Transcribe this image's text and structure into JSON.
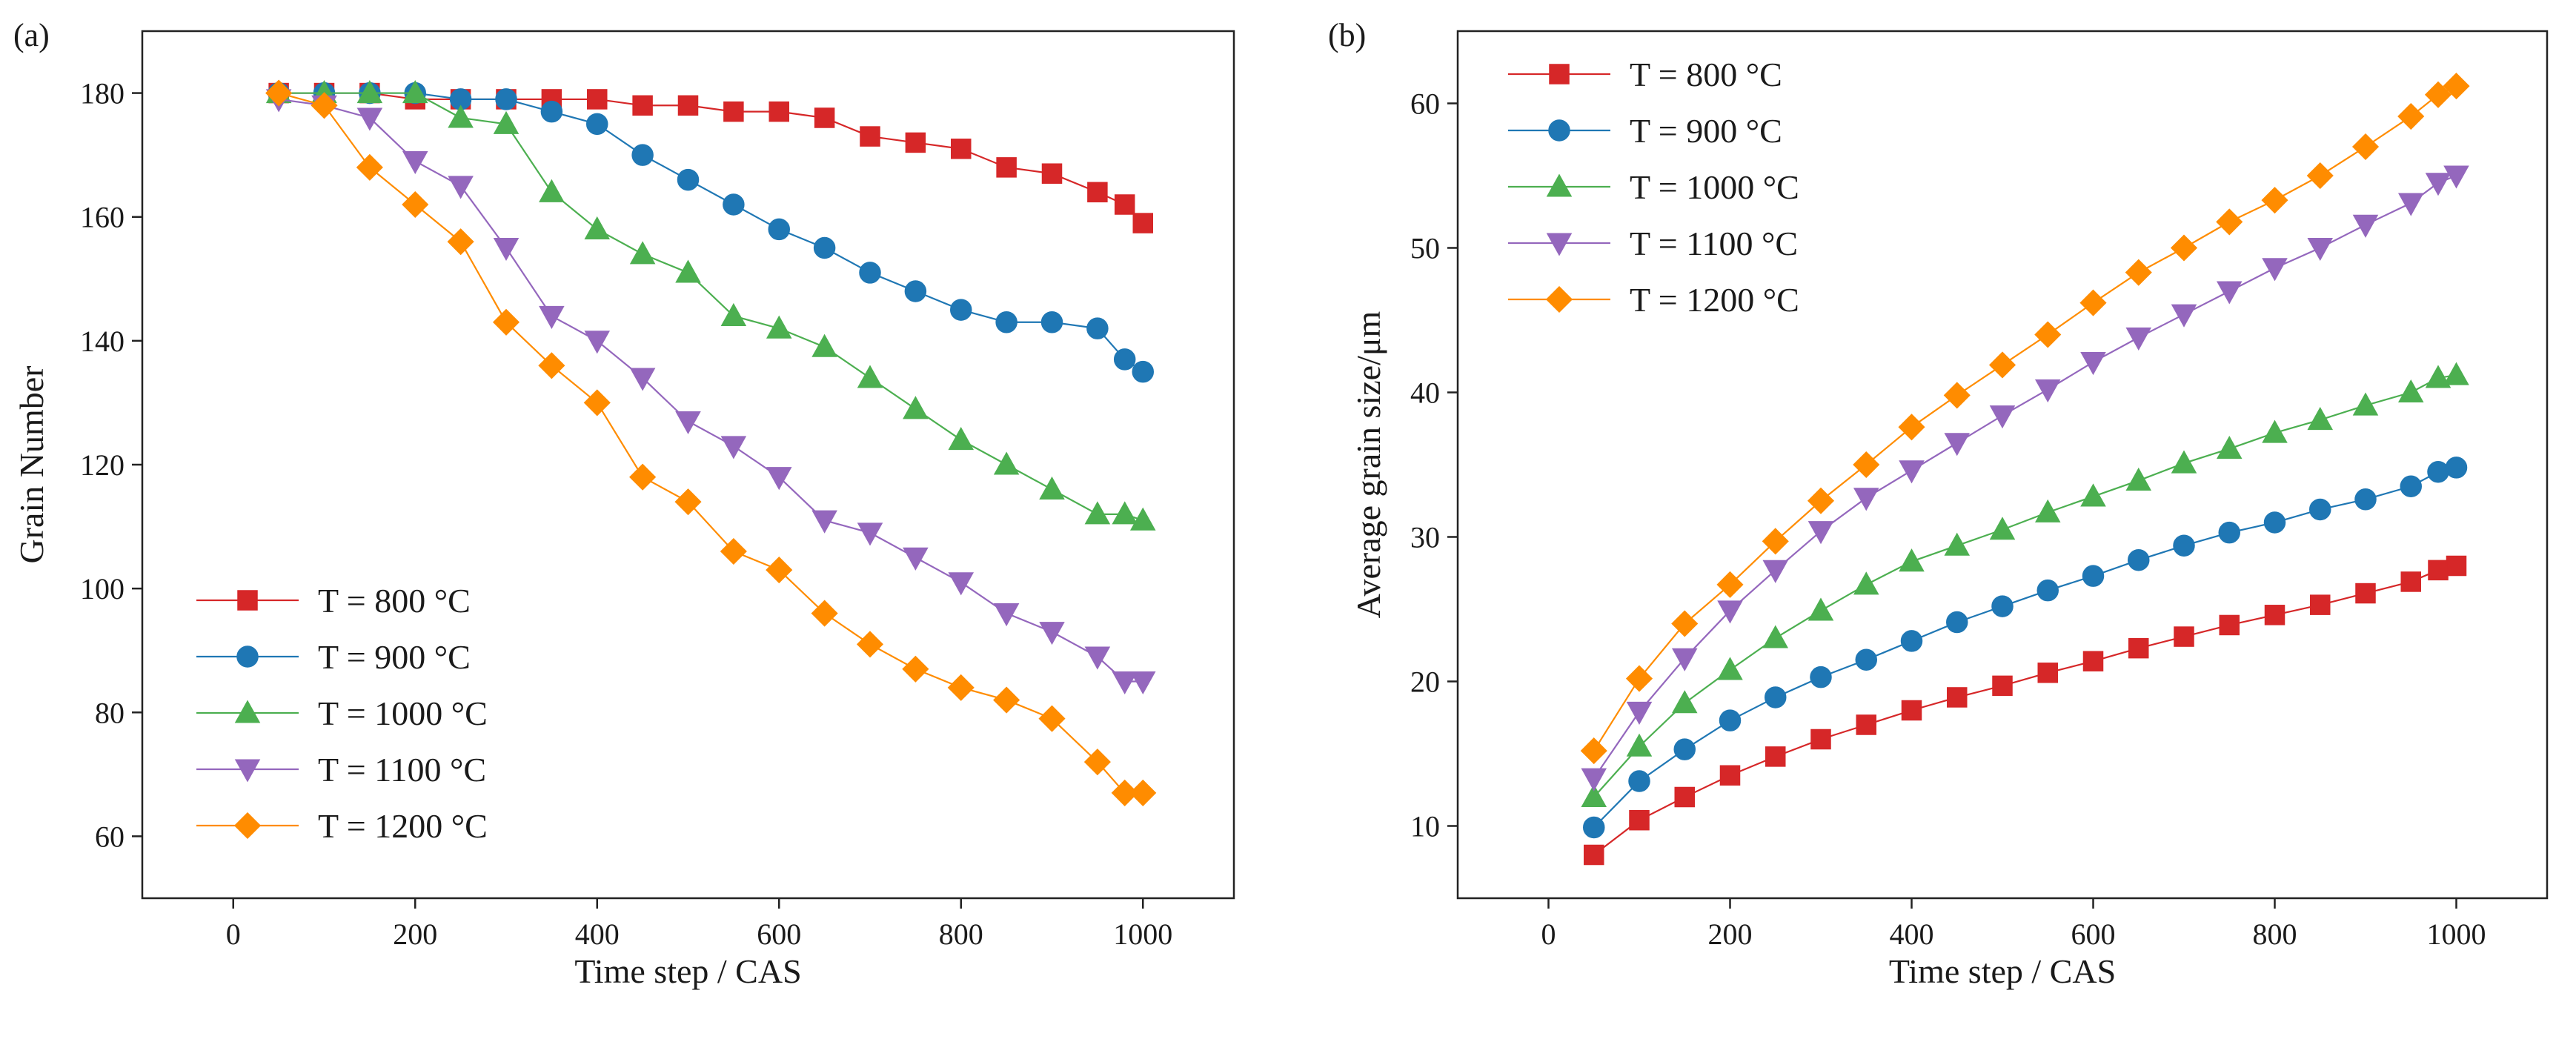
{
  "figure_labels": [
    "(a)",
    "(b)"
  ],
  "chart_data": [
    {
      "type": "line",
      "panel_label": "(a)",
      "title": "",
      "xlabel": "Time step / CAS",
      "ylabel": "Grain Number",
      "xlim": [
        -100,
        1100
      ],
      "ylim": [
        50,
        190
      ],
      "xticks": [
        0,
        200,
        400,
        600,
        800,
        1000
      ],
      "yticks": [
        60,
        80,
        100,
        120,
        140,
        160,
        180
      ],
      "xtick_labels": [
        "0",
        "200",
        "400",
        "600",
        "800",
        "1000"
      ],
      "ytick_labels": [
        "60",
        "80",
        "100",
        "120",
        "140",
        "160",
        "180"
      ],
      "legend_position": "bottom-left",
      "x": [
        50,
        100,
        150,
        200,
        250,
        300,
        350,
        400,
        450,
        500,
        550,
        600,
        650,
        700,
        750,
        800,
        850,
        900,
        950,
        980,
        1000
      ],
      "series": [
        {
          "name": "T = 800 °C",
          "color": "#d62728",
          "marker": "square",
          "values": [
            180,
            180,
            180,
            179,
            179,
            179,
            179,
            179,
            178,
            178,
            177,
            177,
            176,
            173,
            172,
            171,
            168,
            167,
            164,
            162,
            159
          ]
        },
        {
          "name": "T = 900 °C",
          "color": "#1f77b4",
          "marker": "circle",
          "values": [
            180,
            180,
            180,
            180,
            179,
            179,
            177,
            175,
            170,
            166,
            162,
            158,
            155,
            151,
            148,
            145,
            143,
            143,
            142,
            137,
            135
          ]
        },
        {
          "name": "T = 1000 °C",
          "color": "#4caf50",
          "marker": "triangle-up",
          "values": [
            180,
            180,
            180,
            180,
            176,
            175,
            164,
            158,
            154,
            151,
            144,
            142,
            139,
            134,
            129,
            124,
            120,
            116,
            112,
            112,
            111
          ]
        },
        {
          "name": "T = 1100 °C",
          "color": "#9467bd",
          "marker": "triangle-down",
          "values": [
            179,
            178,
            176,
            169,
            165,
            155,
            144,
            140,
            134,
            127,
            123,
            118,
            111,
            109,
            105,
            101,
            96,
            93,
            89,
            85,
            85
          ]
        },
        {
          "name": "T = 1200 °C",
          "color": "#ff8c00",
          "marker": "diamond",
          "values": [
            180,
            178,
            168,
            162,
            156,
            143,
            136,
            130,
            118,
            114,
            106,
            103,
            96,
            91,
            87,
            84,
            82,
            79,
            72,
            67,
            67
          ]
        }
      ]
    },
    {
      "type": "line",
      "panel_label": "(b)",
      "title": "",
      "xlabel": "Time step / CAS",
      "ylabel": "Average grain size/μm",
      "xlim": [
        -100,
        1100
      ],
      "ylim": [
        5,
        65
      ],
      "xticks": [
        0,
        200,
        400,
        600,
        800,
        1000
      ],
      "yticks": [
        10,
        20,
        30,
        40,
        50,
        60
      ],
      "xtick_labels": [
        "0",
        "200",
        "400",
        "600",
        "800",
        "1000"
      ],
      "ytick_labels": [
        "10",
        "20",
        "30",
        "40",
        "50",
        "60"
      ],
      "legend_position": "top-left",
      "x": [
        50,
        100,
        150,
        200,
        250,
        300,
        350,
        400,
        450,
        500,
        550,
        600,
        650,
        700,
        750,
        800,
        850,
        900,
        950,
        980,
        1000
      ],
      "series": [
        {
          "name": "T = 800 °C",
          "color": "#d62728",
          "marker": "square",
          "values": [
            8.0,
            10.4,
            12.0,
            13.5,
            14.8,
            16.0,
            17.0,
            18.0,
            18.9,
            19.7,
            20.6,
            21.4,
            22.3,
            23.1,
            23.9,
            24.6,
            25.3,
            26.1,
            26.9,
            27.7,
            28.0
          ]
        },
        {
          "name": "T = 900 °C",
          "color": "#1f77b4",
          "marker": "circle",
          "values": [
            9.9,
            13.1,
            15.3,
            17.3,
            18.9,
            20.3,
            21.5,
            22.8,
            24.1,
            25.2,
            26.3,
            27.3,
            28.4,
            29.4,
            30.3,
            31.0,
            31.9,
            32.6,
            33.5,
            34.5,
            34.8
          ]
        },
        {
          "name": "T = 1000 °C",
          "color": "#4caf50",
          "marker": "triangle-up",
          "values": [
            12.0,
            15.5,
            18.5,
            20.8,
            23.0,
            24.9,
            26.7,
            28.3,
            29.4,
            30.5,
            31.7,
            32.8,
            33.9,
            35.1,
            36.1,
            37.2,
            38.1,
            39.1,
            40.0,
            41.0,
            41.2
          ]
        },
        {
          "name": "T = 1100 °C",
          "color": "#9467bd",
          "marker": "triangle-down",
          "values": [
            13.3,
            17.9,
            21.6,
            24.9,
            27.7,
            30.4,
            32.7,
            34.6,
            36.5,
            38.4,
            40.2,
            42.1,
            43.8,
            45.4,
            47.0,
            48.6,
            50.0,
            51.6,
            53.1,
            54.5,
            55.0
          ]
        },
        {
          "name": "T = 1200 °C",
          "color": "#ff8c00",
          "marker": "diamond",
          "values": [
            15.2,
            20.2,
            24.0,
            26.7,
            29.7,
            32.5,
            35.0,
            37.6,
            39.8,
            41.9,
            44.0,
            46.2,
            48.3,
            50.0,
            51.8,
            53.3,
            55.0,
            57.0,
            59.1,
            60.6,
            61.2
          ]
        }
      ]
    }
  ]
}
